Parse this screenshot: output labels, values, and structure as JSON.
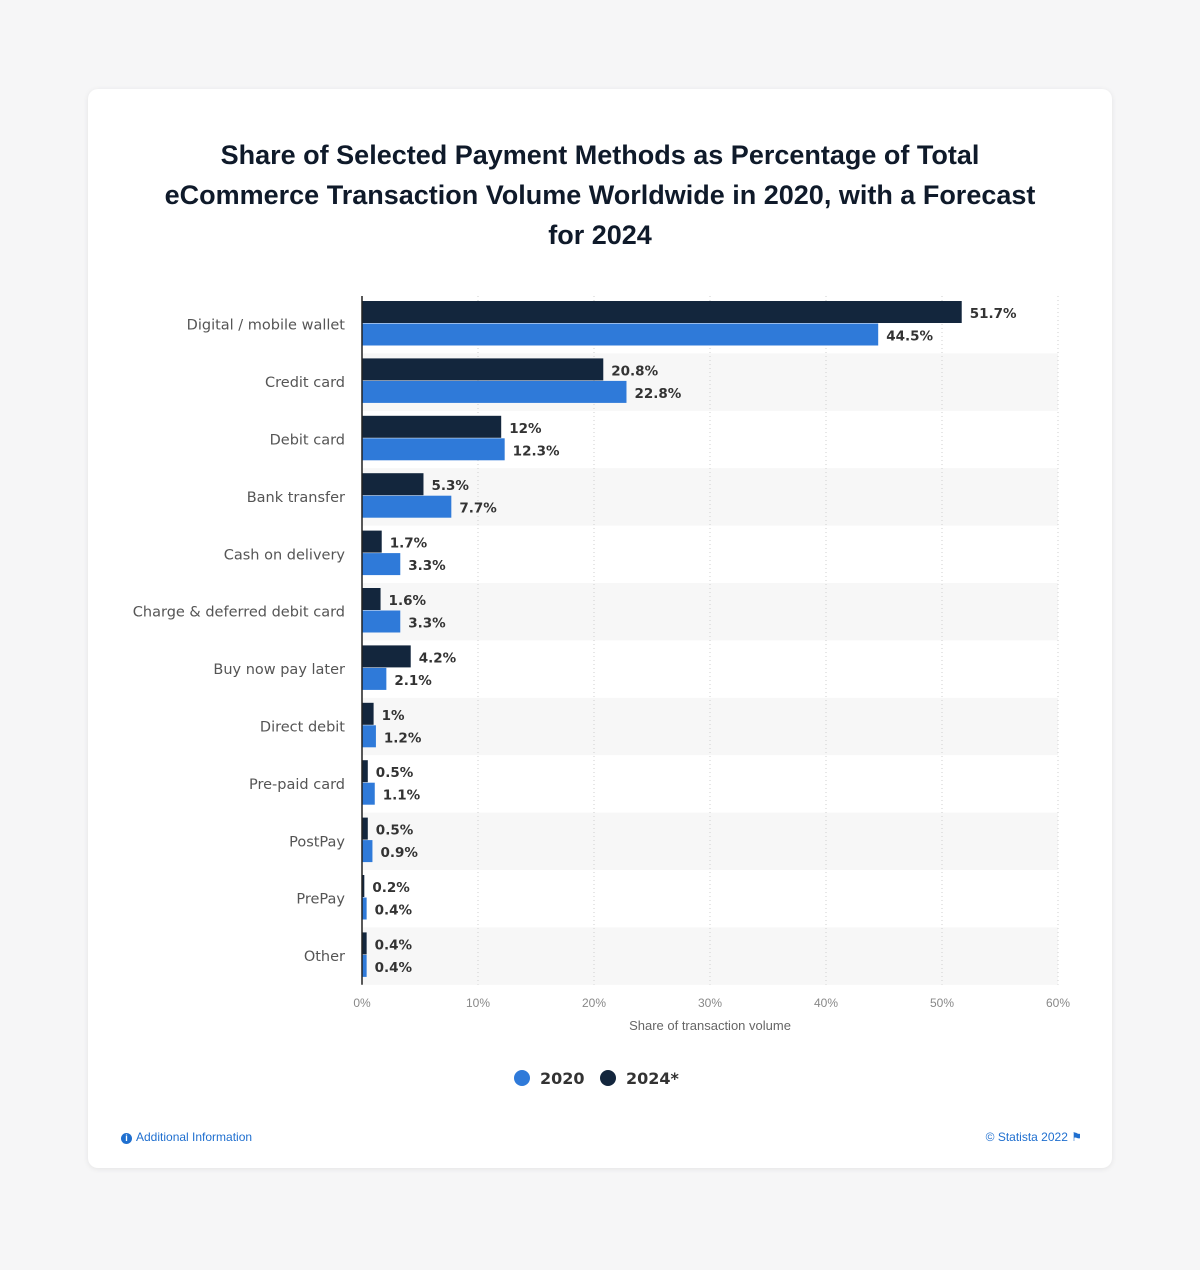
{
  "title": "Share of Selected Payment Methods as Percentage of Total eCommerce Transaction Volume Worldwide in 2020, with a Forecast for 2024",
  "chart_data": {
    "type": "bar",
    "orientation": "horizontal",
    "title": "Share of Selected Payment Methods as Percentage of Total eCommerce Transaction Volume Worldwide in 2020, with a Forecast for 2024",
    "xlabel": "Share of transaction volume",
    "ylabel": "",
    "xlim": [
      0,
      60
    ],
    "x_ticks": [
      "0%",
      "10%",
      "20%",
      "30%",
      "40%",
      "50%",
      "60%"
    ],
    "grid": true,
    "legend_position": "bottom-center",
    "categories": [
      "Digital / mobile wallet",
      "Credit card",
      "Debit card",
      "Bank transfer",
      "Cash on delivery",
      "Charge & deferred debit card",
      "Buy now pay later",
      "Direct debit",
      "Pre-paid card",
      "PostPay",
      "PrePay",
      "Other"
    ],
    "series": [
      {
        "name": "2024*",
        "color": "#13263d",
        "values": [
          51.7,
          20.8,
          12,
          5.3,
          1.7,
          1.6,
          4.2,
          1,
          0.5,
          0.5,
          0.2,
          0.4
        ],
        "labels": [
          "51.7%",
          "20.8%",
          "12%",
          "5.3%",
          "1.7%",
          "1.6%",
          "4.2%",
          "1%",
          "0.5%",
          "0.5%",
          "0.2%",
          "0.4%"
        ]
      },
      {
        "name": "2020",
        "color": "#2f7ad9",
        "values": [
          44.5,
          22.8,
          12.3,
          7.7,
          3.3,
          3.3,
          2.1,
          1.2,
          1.1,
          0.9,
          0.4,
          0.4
        ],
        "labels": [
          "44.5%",
          "22.8%",
          "12.3%",
          "7.7%",
          "3.3%",
          "3.3%",
          "2.1%",
          "1.2%",
          "1.1%",
          "0.9%",
          "0.4%",
          "0.4%"
        ]
      }
    ],
    "legend": [
      "2020",
      "2024*"
    ]
  },
  "footer": {
    "info": "Additional Information",
    "copyright": "© Statista 2022"
  }
}
